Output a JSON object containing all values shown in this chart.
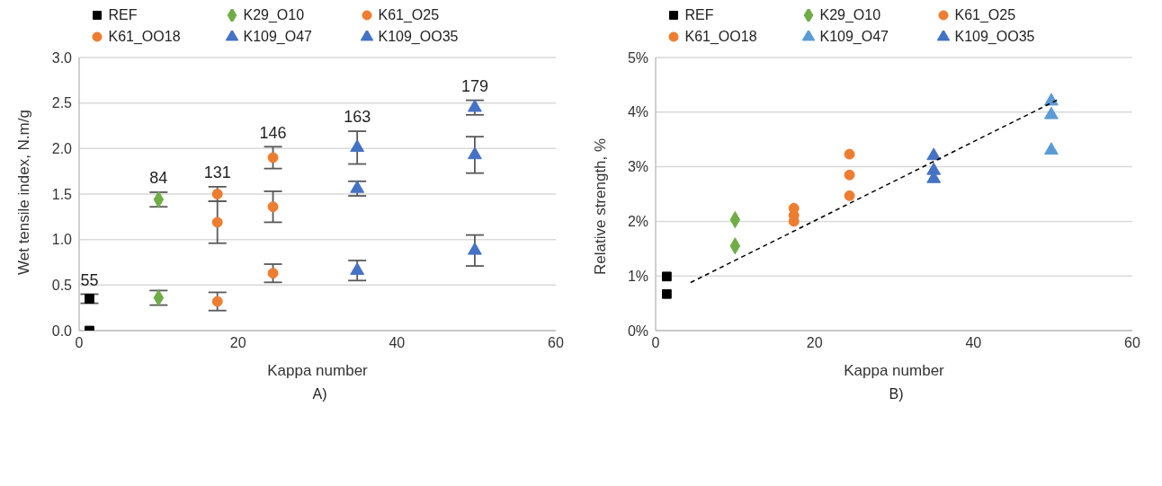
{
  "chart_data": [
    {
      "type": "scatter",
      "xlabel": "Kappa number",
      "ylabel": "Wet tensile index, N.m/g",
      "xlim": [
        0,
        60
      ],
      "xticks": [
        0,
        20,
        40,
        60
      ],
      "ylim": [
        0,
        3
      ],
      "yticks": [
        {
          "value": 0,
          "label": "0.0"
        },
        0.5,
        {
          "value": 1,
          "label": "1.0"
        },
        1.5,
        {
          "value": 2,
          "label": "2.0"
        },
        2.5,
        {
          "value": 3,
          "label": "3.0"
        }
      ],
      "grid": "y",
      "legend": "top",
      "annotations": [
        "55",
        "84",
        "131",
        "146",
        "163",
        "179",
        "A)"
      ],
      "series": [
        {
          "name": "REF",
          "color": "#000000",
          "marker": "square",
          "x": [
            1.3,
            1.3
          ],
          "values": [
            0.35,
            0.0
          ],
          "errors": [
            0.05,
            null
          ]
        },
        {
          "name": "K29_O10",
          "color": "#70ad47",
          "marker": "diamond",
          "x": [
            10,
            10
          ],
          "values": [
            1.44,
            0.36
          ],
          "errors": [
            0.08,
            0.08
          ]
        },
        {
          "name": "K61_O25",
          "color": "#ed7d31",
          "marker": "circle",
          "x": [
            24.4,
            24.4,
            24.4
          ],
          "values": [
            1.9,
            1.36,
            0.63
          ],
          "errors": [
            0.12,
            0.17,
            0.1
          ]
        },
        {
          "name": "K61_OO18",
          "color": "#ed7d31",
          "marker": "circle",
          "x": [
            17.4,
            17.4,
            17.4
          ],
          "values": [
            1.5,
            1.19,
            0.32
          ],
          "errors": [
            0.08,
            0.23,
            0.1
          ]
        },
        {
          "name": "K109_O47",
          "color": "#4472c4",
          "marker": "triangle",
          "x": [
            49.8,
            49.8,
            49.8
          ],
          "values": [
            2.45,
            1.93,
            0.88
          ],
          "errors": [
            0.08,
            0.2,
            0.17
          ]
        },
        {
          "name": "K109_OO35",
          "color": "#4472c4",
          "marker": "triangle",
          "x": [
            35,
            35,
            35
          ],
          "values": [
            2.01,
            1.56,
            0.66
          ],
          "errors": [
            0.18,
            0.08,
            0.11
          ]
        }
      ]
    },
    {
      "type": "scatter",
      "xlabel": "Kappa number",
      "ylabel": "Relative strength, %",
      "xlim": [
        0,
        60
      ],
      "xticks": [
        0,
        20,
        40,
        60
      ],
      "ylim": [
        0,
        5
      ],
      "yticks": [
        {
          "value": 0,
          "label": "0%"
        },
        {
          "value": 1,
          "label": "1%"
        },
        {
          "value": 2,
          "label": "2%"
        },
        {
          "value": 3,
          "label": "3%"
        },
        {
          "value": 4,
          "label": "4%"
        },
        {
          "value": 5,
          "label": "5%"
        }
      ],
      "grid": "y",
      "legend": "top",
      "annotations": [
        "B)"
      ],
      "series": [
        {
          "name": "REF",
          "color": "#000000",
          "marker": "square",
          "x": [
            1.4,
            1.4
          ],
          "values": [
            0.99,
            0.67
          ]
        },
        {
          "name": "K29_O10",
          "color": "#70ad47",
          "marker": "diamond",
          "x": [
            10,
            10
          ],
          "values": [
            2.03,
            1.55
          ]
        },
        {
          "name": "K61_O25",
          "color": "#ed7d31",
          "marker": "circle",
          "x": [
            24.4,
            24.4,
            24.4
          ],
          "values": [
            3.23,
            2.85,
            2.47
          ]
        },
        {
          "name": "K61_OO18",
          "color": "#ed7d31",
          "marker": "circle",
          "x": [
            17.4,
            17.4,
            17.4
          ],
          "values": [
            2.24,
            2.11,
            2.0
          ]
        },
        {
          "name": "K109_O47",
          "color": "#5b9bd5",
          "marker": "triangle",
          "x": [
            49.8,
            49.8,
            49.8
          ],
          "values": [
            4.2,
            3.95,
            3.3
          ]
        },
        {
          "name": "K109_OO35",
          "color": "#4472c4",
          "marker": "triangle",
          "x": [
            35,
            35,
            35
          ],
          "values": [
            3.2,
            2.93,
            2.78
          ]
        },
        {
          "type": "line",
          "color": "#000000",
          "line_style": "dashed",
          "marker": "none",
          "x": [
            4.4,
            50.8
          ],
          "values": [
            0.88,
            4.24
          ]
        }
      ]
    }
  ]
}
